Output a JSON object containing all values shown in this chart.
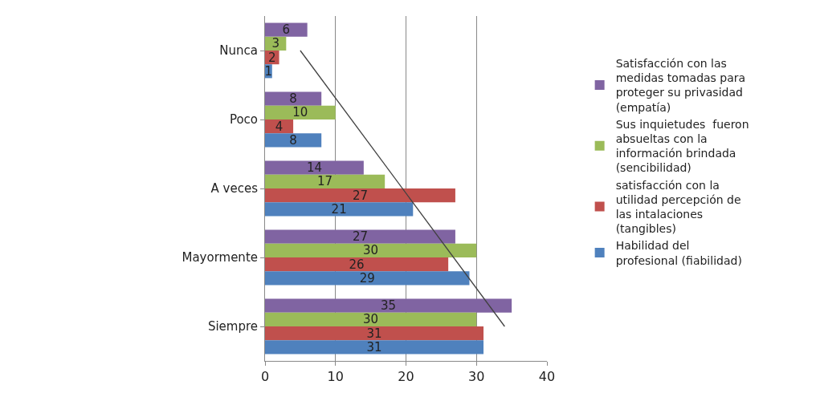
{
  "chart_data": {
    "type": "bar",
    "orientation": "horizontal",
    "categories": [
      "Nunca",
      "Poco",
      "A veces",
      "Mayormente",
      "Siempre"
    ],
    "series": [
      {
        "name": "Satisfacción con las medidas tomadas para proteger su privasidad (empatía)",
        "color": "#8064a2",
        "values": [
          6,
          8,
          14,
          27,
          35
        ]
      },
      {
        "name": "Sus inquietudes  fueron absueltas con la información brindada (sencibilidad)",
        "color": "#9bbb59",
        "values": [
          3,
          10,
          17,
          30,
          30
        ]
      },
      {
        "name": "satisfacción con la utilidad percepción de las intalaciones (tangibles)",
        "color": "#c0504d",
        "values": [
          2,
          4,
          27,
          26,
          31
        ]
      },
      {
        "name": "Habilidad del profesional (fiabilidad)",
        "color": "#4f81bd",
        "values": [
          1,
          8,
          21,
          29,
          31
        ]
      },
      {
        "type": "line",
        "color": "#404040",
        "values": [
          5,
          null,
          null,
          null,
          34
        ],
        "value_labels": [
          null,
          null,
          null,
          null,
          null
        ],
        "marker": "none"
      }
    ],
    "xlim": [
      0,
      40
    ],
    "xticks": [
      0,
      10,
      20,
      30,
      40
    ],
    "grid": "x",
    "legend": "right",
    "data_labels": true
  }
}
